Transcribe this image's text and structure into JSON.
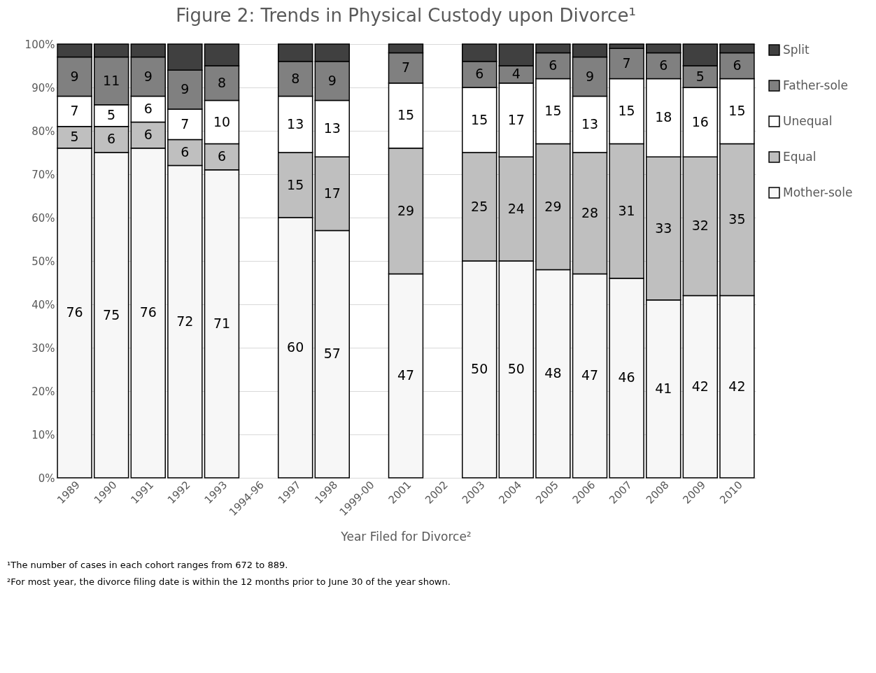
{
  "chart_data": {
    "type": "bar",
    "stacked": true,
    "title": "Figure 2: Trends in Physical Custody upon Divorce¹",
    "xlabel": "Year Filed for Divorce²",
    "categories": [
      "1989",
      "1990",
      "1991",
      "1992",
      "1993",
      "1994-96",
      "1997",
      "1998",
      "1999-00",
      "2001",
      "2002",
      "2003",
      "2004",
      "2005",
      "2006",
      "2007",
      "2008",
      "2009",
      "2010"
    ],
    "series": [
      {
        "name": "Mother-sole",
        "color": "#f7f7f7",
        "values": [
          76,
          75,
          76,
          72,
          71,
          null,
          60,
          57,
          null,
          47,
          null,
          50,
          50,
          48,
          47,
          46,
          41,
          42,
          42
        ],
        "value_labels": [
          "76",
          "75",
          "76",
          "72",
          "71",
          null,
          "60",
          "57",
          null,
          "47",
          null,
          "50",
          "50",
          "48",
          "47",
          "46",
          "41",
          "42",
          "42"
        ]
      },
      {
        "name": "Equal",
        "color": "#bfbfbf",
        "values": [
          5,
          6,
          6,
          6,
          6,
          null,
          15,
          17,
          null,
          29,
          null,
          25,
          24,
          29,
          28,
          31,
          33,
          32,
          35
        ],
        "value_labels": [
          "5",
          "6",
          "6",
          "6",
          "6",
          null,
          "15",
          "17",
          null,
          "29",
          null,
          "25",
          "24",
          "29",
          "28",
          "31",
          "33",
          "32",
          "35"
        ]
      },
      {
        "name": "Unequal",
        "color": "#ffffff",
        "values": [
          7,
          5,
          6,
          7,
          10,
          null,
          13,
          13,
          null,
          15,
          null,
          15,
          17,
          15,
          13,
          15,
          18,
          16,
          15
        ],
        "value_labels": [
          "7",
          "5",
          "6",
          "7",
          "10",
          null,
          "13",
          "13",
          null,
          "15",
          null,
          "15",
          "17",
          "15",
          "13",
          "15",
          "18",
          "16",
          "15"
        ]
      },
      {
        "name": "Father-sole",
        "color": "#808080",
        "values": [
          9,
          11,
          9,
          9,
          8,
          null,
          8,
          9,
          null,
          7,
          null,
          6,
          4,
          6,
          9,
          7,
          6,
          5,
          6
        ],
        "value_labels": [
          "9",
          "11",
          "9",
          "9",
          "8",
          null,
          "8",
          "9",
          null,
          "7",
          null,
          "6",
          "4",
          "6",
          "9",
          "7",
          "6",
          "5",
          "6"
        ]
      },
      {
        "name": "Split",
        "color": "#404040",
        "values": [
          3,
          3,
          3,
          6,
          5,
          null,
          4,
          4,
          null,
          2,
          null,
          4,
          5,
          2,
          3,
          1,
          2,
          5,
          2
        ]
      }
    ],
    "ylim": [
      0,
      100
    ],
    "yticks": [
      {
        "value": 0,
        "label": "0%"
      },
      {
        "value": 10,
        "label": "10%"
      },
      {
        "value": 20,
        "label": "20%"
      },
      {
        "value": 30,
        "label": "30%"
      },
      {
        "value": 40,
        "label": "40%"
      },
      {
        "value": 50,
        "label": "50%"
      },
      {
        "value": 60,
        "label": "60%"
      },
      {
        "value": 70,
        "label": "70%"
      },
      {
        "value": 80,
        "label": "80%"
      },
      {
        "value": 90,
        "label": "90%"
      },
      {
        "value": 100,
        "label": "100%"
      }
    ],
    "grid": "y",
    "legend": "right",
    "annotations": [
      "¹The number of cases in each cohort ranges from 672 to 889.",
      "²For most year, the divorce filing date is within the 12 months prior to June 30 of the year shown."
    ]
  }
}
